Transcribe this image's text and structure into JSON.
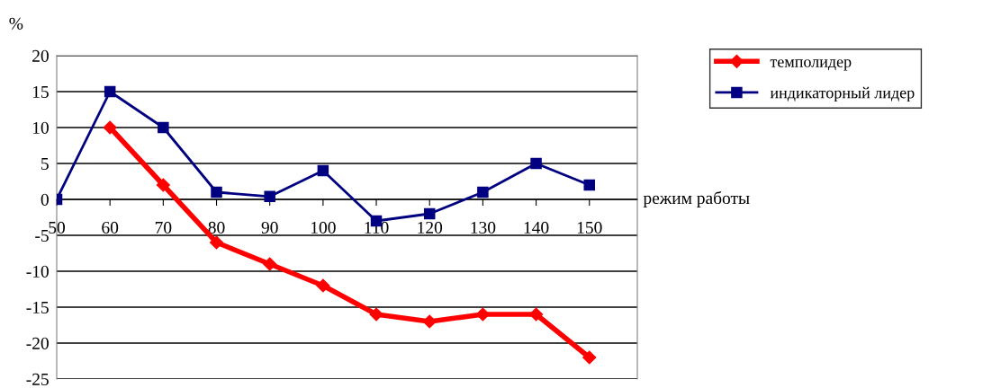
{
  "chart_data": {
    "type": "line",
    "ylabel": "%",
    "xlabel": "режим работы",
    "x": [
      50,
      60,
      70,
      80,
      90,
      100,
      110,
      120,
      130,
      140,
      150
    ],
    "xlim": [
      50,
      159
    ],
    "xticks": [
      50,
      60,
      70,
      80,
      90,
      100,
      110,
      120,
      130,
      140,
      150
    ],
    "ylim": [
      -25,
      20
    ],
    "yticks": [
      -25,
      -20,
      -15,
      -10,
      -5,
      0,
      5,
      10,
      15,
      20
    ],
    "grid": "y",
    "legend": "right",
    "series": [
      {
        "name": "темполидер",
        "color": "#ff0000",
        "marker": "diamond",
        "values": [
          null,
          10,
          2,
          -6,
          -9,
          -12,
          -16,
          -17,
          -16,
          -16,
          -22
        ]
      },
      {
        "name": "индикаторный лидер",
        "color": "#000080",
        "marker": "square",
        "values": [
          0,
          15,
          10,
          1,
          0.4,
          4,
          -3,
          -2,
          1,
          5,
          2
        ]
      }
    ]
  }
}
